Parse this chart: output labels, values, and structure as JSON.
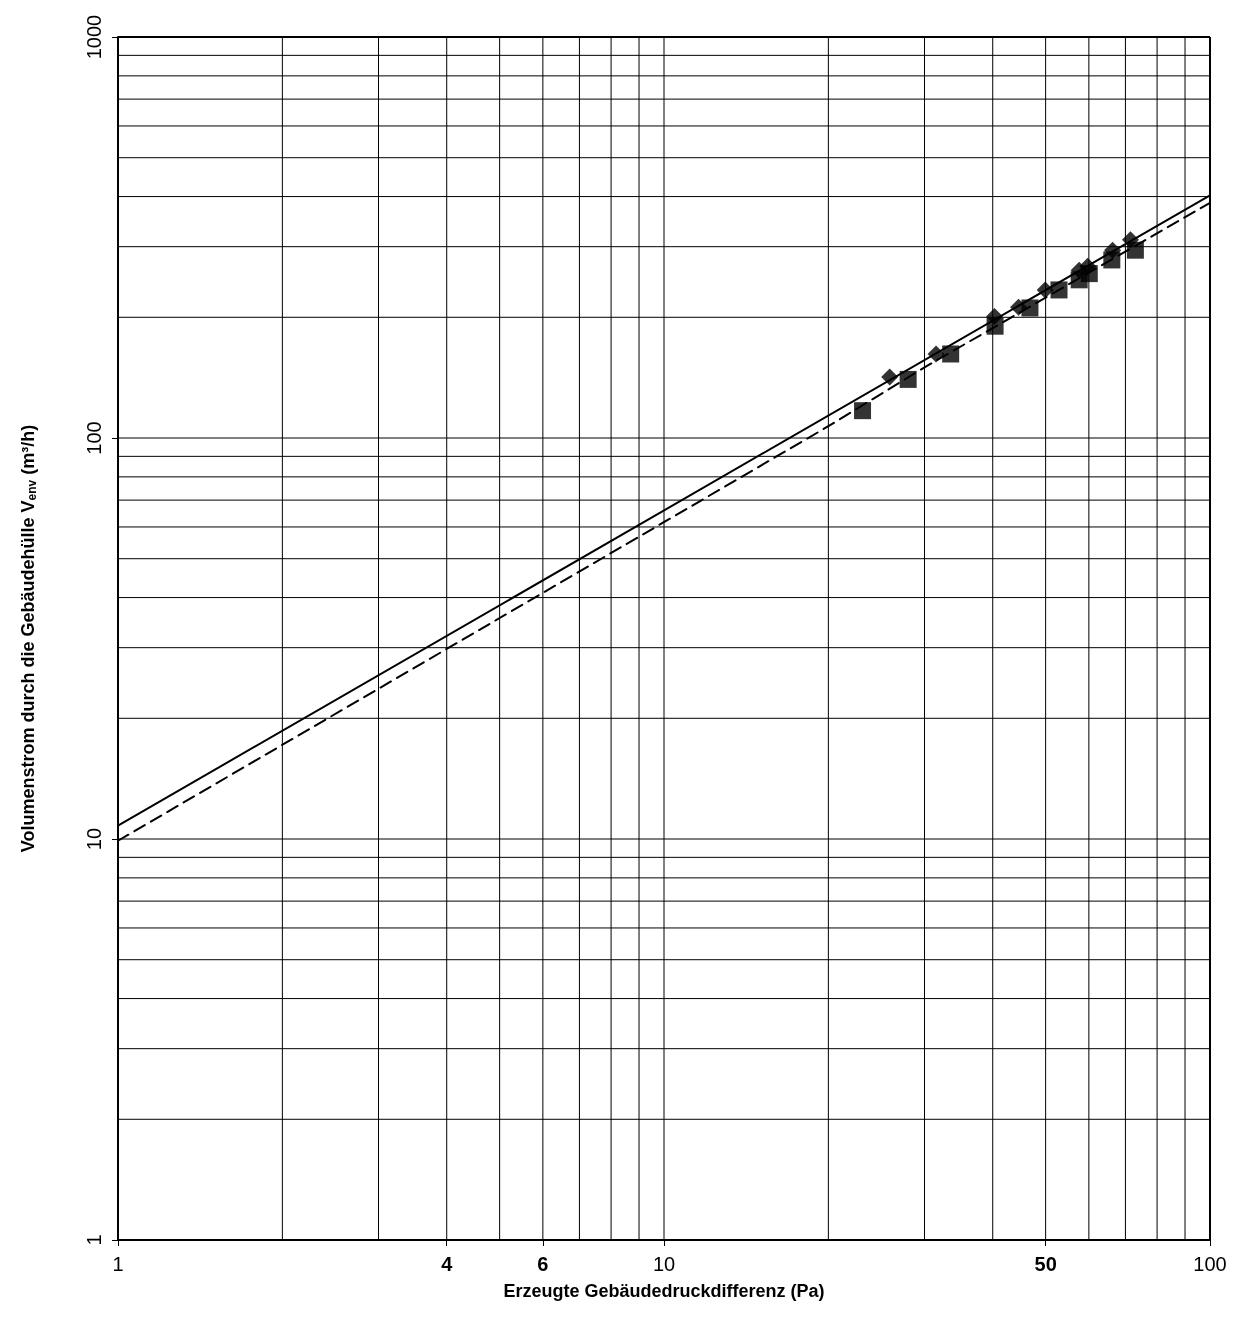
{
  "chart_data": {
    "type": "scatter",
    "xlabel": "Erzeugte Gebäudedruckdifferenz (Pa)",
    "ylabel": "Volumenstrom durch die Gebäudehülle V$_{env}$ (m³/h)",
    "log": "xy",
    "grid": true,
    "xlim": [
      1,
      100
    ],
    "ylim": [
      1,
      1000
    ],
    "xticks": [
      1,
      4,
      6,
      10,
      50,
      100
    ],
    "yticks": [
      1,
      10,
      100,
      1000
    ],
    "series": [
      {
        "marker": "diamond",
        "color": "#000000",
        "x": [
          25.9,
          31.5,
          40.3,
          44.6,
          49.9,
          57.6,
          59.7,
          66.3,
          71.5
        ],
        "values": [
          142,
          162,
          201,
          212,
          234,
          262,
          268,
          294,
          312
        ]
      },
      {
        "marker": "square",
        "color": "#000000",
        "x": [
          23.1,
          28.0,
          33.5,
          40.4,
          46.8,
          52.9,
          57.6,
          60.1,
          66.1,
          73.0
        ],
        "values": [
          117,
          140,
          162,
          190,
          211,
          234,
          248,
          257,
          278,
          294
        ]
      },
      {
        "type": "line",
        "marker": "none",
        "line_style": "solid",
        "color": "#000000",
        "x": [
          1,
          100
        ],
        "values": [
          10.8,
          403
        ]
      },
      {
        "type": "line",
        "marker": "none",
        "line_style": "dashed",
        "color": "#000000",
        "x": [
          1,
          20,
          30,
          100
        ],
        "values": [
          9.9,
          107,
          150,
          386
        ]
      }
    ]
  }
}
